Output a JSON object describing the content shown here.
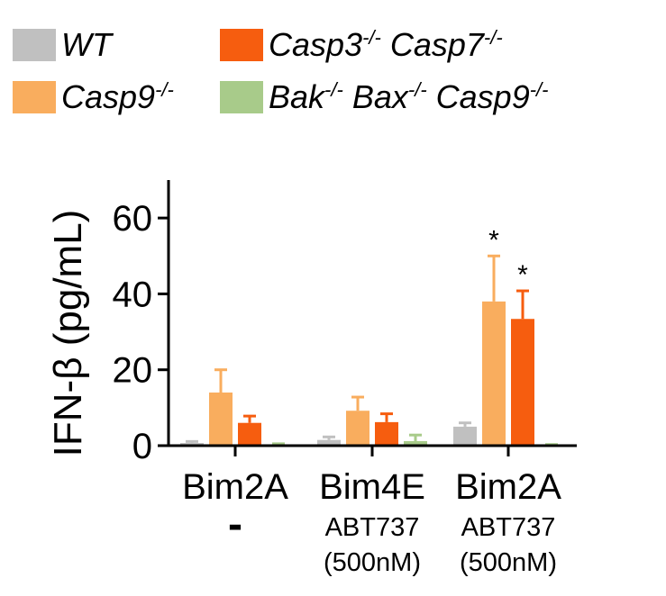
{
  "chart_data": {
    "type": "bar",
    "ylabel": "IFN-β (pg/mL)",
    "ylim": [
      0,
      70
    ],
    "yticks": [
      "0",
      "20",
      "40",
      "60"
    ],
    "legend_position": "top",
    "categories": [
      {
        "name": "Bim2A",
        "sub1": "-",
        "sub2": ""
      },
      {
        "name": "Bim4E",
        "sub1": "ABT737",
        "sub2": "(500nM)"
      },
      {
        "name": "Bim2A",
        "sub1": "ABT737",
        "sub2": "(500nM)"
      }
    ],
    "series": [
      {
        "key": "wt",
        "base": "WT",
        "sups": [],
        "genes": [],
        "color": "#c0c0c0",
        "values": [
          0.7,
          1.5,
          5.0
        ],
        "errors": [
          0.4,
          0.8,
          1.0
        ],
        "sig": [
          "",
          "",
          ""
        ]
      },
      {
        "key": "casp9",
        "base": "",
        "sups": [],
        "genes": [
          {
            "g": "Casp9",
            "s": "-/-"
          }
        ],
        "color": "#f9ad5e",
        "values": [
          14,
          9.2,
          38
        ],
        "errors": [
          6,
          3.6,
          12
        ],
        "sig": [
          "",
          "",
          "*"
        ]
      },
      {
        "key": "casp37",
        "base": "",
        "sups": [],
        "genes": [
          {
            "g": "Casp3",
            "s": "-/-"
          },
          {
            "g": "Casp7",
            "s": "-/-"
          }
        ],
        "color": "#f65d0f",
        "values": [
          6,
          6.2,
          33.4
        ],
        "errors": [
          1.8,
          2.2,
          7.4
        ],
        "sig": [
          "",
          "",
          "*"
        ]
      },
      {
        "key": "bakbax",
        "base": "",
        "sups": [],
        "genes": [
          {
            "g": "Bak",
            "s": "-/-"
          },
          {
            "g": "Bax",
            "s": "-/-"
          },
          {
            "g": "Casp9",
            "s": "-/-"
          }
        ],
        "color": "#a8cb8a",
        "values": [
          0.3,
          1.2,
          0.2
        ],
        "errors": [
          0.2,
          1.6,
          0.1
        ],
        "sig": [
          "",
          "",
          ""
        ]
      }
    ]
  }
}
